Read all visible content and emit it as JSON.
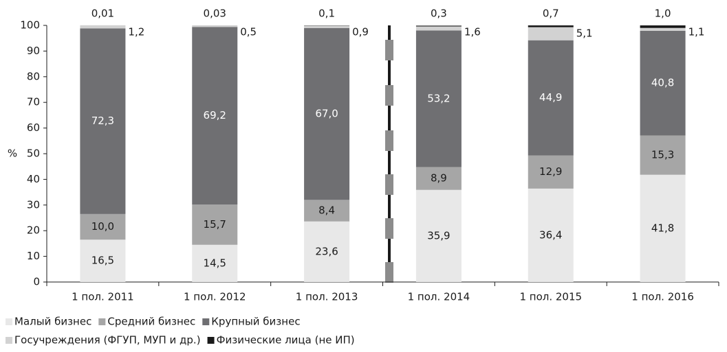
{
  "chart_data": {
    "type": "stacked_bar",
    "y_label": "%",
    "categories": [
      "1 пол. 2011",
      "1 пол. 2012",
      "1 пол. 2013",
      "1 пол. 2014",
      "1 пол. 2015",
      "1 пол. 2016"
    ],
    "series": [
      {
        "name": "Малый бизнес",
        "color": "#e8e8e8",
        "values": [
          16.5,
          14.5,
          23.6,
          35.9,
          36.4,
          41.8
        ],
        "value_labels": [
          "16,5",
          "14,5",
          "23,6",
          "35,9",
          "36,4",
          "41,8"
        ]
      },
      {
        "name": "Средний бизнес",
        "color": "#a6a6a6",
        "values": [
          10.0,
          15.7,
          8.4,
          8.9,
          12.9,
          15.3
        ],
        "value_labels": [
          "10,0",
          "15,7",
          "8,4",
          "8,9",
          "12,9",
          "15,3"
        ]
      },
      {
        "name": "Крупный бизнес",
        "color": "#6f6f72",
        "values": [
          72.3,
          69.2,
          67.0,
          53.2,
          44.9,
          40.8
        ],
        "value_labels": [
          "72,3",
          "69,2",
          "67,0",
          "53,2",
          "44,9",
          "40,8"
        ]
      },
      {
        "name": "Госучреждения (ФГУП,  МУП и др.)",
        "color": "#d2d2d2",
        "values": [
          1.2,
          0.5,
          0.9,
          1.6,
          5.1,
          1.1
        ],
        "value_labels": [
          "1,2",
          "0,5",
          "0,9",
          "1,6",
          "5,1",
          "1,1"
        ]
      },
      {
        "name": "Физические лица (не ИП)",
        "color": "#1a1a1a",
        "values": [
          0.01,
          0.03,
          0.1,
          0.3,
          0.7,
          1.0
        ],
        "value_labels": [
          "0,01",
          "0,03",
          "0,1",
          "0,3",
          "0,7",
          "1,0"
        ]
      }
    ],
    "ylim": [
      0,
      100
    ],
    "yticks": [
      0,
      10,
      20,
      30,
      40,
      50,
      60,
      70,
      80,
      90,
      100
    ],
    "legend": "bottom-left"
  }
}
